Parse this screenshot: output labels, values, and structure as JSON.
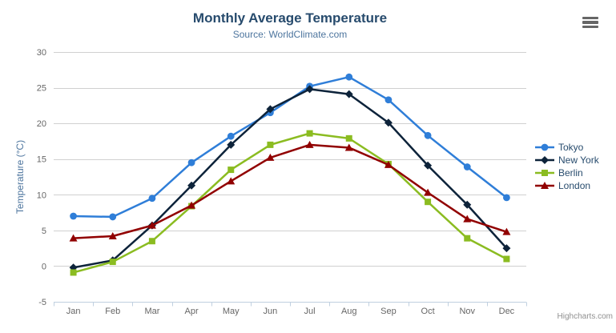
{
  "chart_data": {
    "type": "line",
    "title": "Monthly Average Temperature",
    "subtitle": "Source: WorldClimate.com",
    "xlabel": "",
    "ylabel": "Temperature (°C)",
    "ylim": [
      -5,
      30
    ],
    "y_ticks": [
      -5,
      0,
      5,
      10,
      15,
      20,
      25,
      30
    ],
    "grid": true,
    "legend_position": "right",
    "categories": [
      "Jan",
      "Feb",
      "Mar",
      "Apr",
      "May",
      "Jun",
      "Jul",
      "Aug",
      "Sep",
      "Oct",
      "Nov",
      "Dec"
    ],
    "series": [
      {
        "name": "Tokyo",
        "marker": "circle",
        "color": "#2f7ed8",
        "values": [
          7.0,
          6.9,
          9.5,
          14.5,
          18.2,
          21.5,
          25.2,
          26.5,
          23.3,
          18.3,
          13.9,
          9.6
        ]
      },
      {
        "name": "New York",
        "marker": "diamond",
        "color": "#0d233a",
        "values": [
          -0.2,
          0.8,
          5.7,
          11.3,
          17.0,
          22.0,
          24.8,
          24.1,
          20.1,
          14.1,
          8.6,
          2.5
        ]
      },
      {
        "name": "Berlin",
        "marker": "square",
        "color": "#8bbc21",
        "values": [
          -0.9,
          0.6,
          3.5,
          8.4,
          13.5,
          17.0,
          18.6,
          17.9,
          14.3,
          9.0,
          3.9,
          1.0
        ]
      },
      {
        "name": "London",
        "marker": "triangle",
        "color": "#910000",
        "values": [
          3.9,
          4.2,
          5.7,
          8.5,
          11.9,
          15.2,
          17.0,
          16.6,
          14.2,
          10.3,
          6.6,
          4.8
        ]
      }
    ],
    "colors": {
      "grid": "#d0d0d0",
      "axis_line": "#c0d0e0",
      "axis_label": "#666666",
      "title": "#274b6d",
      "subtitle": "#4d759e",
      "axis_title": "#4d759e",
      "legend_label": "#274b6d",
      "credits": "#909090"
    }
  },
  "footer": {
    "credits": "Highcharts.com"
  },
  "menu": {
    "icon": "hamburger-icon"
  }
}
